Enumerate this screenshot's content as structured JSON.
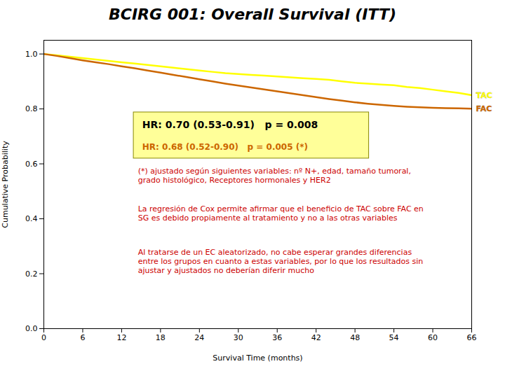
{
  "chart_data": {
    "type": "line",
    "title": "BCIRG 001: Overall Survival (ITT)",
    "xlabel": "Survival Time (months)",
    "ylabel": "Cumulative Probability",
    "x": [
      0,
      2,
      4,
      6,
      8,
      10,
      12,
      14,
      16,
      18,
      20,
      22,
      24,
      26,
      28,
      30,
      32,
      34,
      36,
      38,
      40,
      42,
      44,
      46,
      48,
      50,
      52,
      54,
      56,
      58,
      60,
      62,
      64,
      66
    ],
    "series": [
      {
        "name": "TAC",
        "color": "#FFFF00",
        "values": [
          1.0,
          0.995,
          0.99,
          0.985,
          0.98,
          0.975,
          0.97,
          0.965,
          0.96,
          0.955,
          0.95,
          0.945,
          0.94,
          0.935,
          0.93,
          0.927,
          0.924,
          0.921,
          0.918,
          0.915,
          0.912,
          0.909,
          0.906,
          0.9,
          0.895,
          0.892,
          0.889,
          0.886,
          0.88,
          0.876,
          0.87,
          0.864,
          0.858,
          0.85
        ]
      },
      {
        "name": "FAC",
        "color": "#CC6600",
        "values": [
          1.0,
          0.993,
          0.985,
          0.977,
          0.97,
          0.963,
          0.955,
          0.948,
          0.94,
          0.932,
          0.924,
          0.916,
          0.908,
          0.9,
          0.892,
          0.885,
          0.878,
          0.871,
          0.864,
          0.857,
          0.85,
          0.843,
          0.836,
          0.83,
          0.824,
          0.819,
          0.815,
          0.811,
          0.808,
          0.806,
          0.804,
          0.803,
          0.802,
          0.801
        ]
      }
    ],
    "xlim": [
      0,
      66
    ],
    "ylim": [
      0.0,
      1.05
    ],
    "xticks": [
      0,
      6,
      12,
      18,
      24,
      30,
      36,
      42,
      48,
      54,
      60,
      66
    ],
    "yticks": [
      {
        "value": 0.0,
        "label": "0.0"
      },
      0.2,
      0.4,
      0.6,
      0.8,
      {
        "value": 1.0,
        "label": "1.0"
      }
    ],
    "grid": false,
    "annotations": [
      {
        "text": "HR: 0.70 (0.53-0.91)   p = 0.008",
        "color": "#000000"
      },
      {
        "text": "HR: 0.68 (0.52-0.90)   p = 0.005 (*)",
        "color": "#CC6600"
      },
      {
        "text": "(*) ajustado según siguientes variables: nº N+, edad, tamaño tumoral,\ngrado histológico, Receptores hormonales y HER2",
        "color": "#CC0000"
      },
      {
        "text": "La regresión de Cox permite afirmar que el beneficio de TAC sobre FAC en\nSG es debido propiamente al tratamiento y no a las otras variables",
        "color": "#CC0000"
      },
      {
        "text": "Al tratarse de un EC aleatorizado, no cabe esperar grandes diferencias\nentre los grupos en cuanto a estas variables, por lo que los resultados sin\najustar y ajustados no deberían diferir mucho",
        "color": "#CC0000"
      }
    ]
  }
}
